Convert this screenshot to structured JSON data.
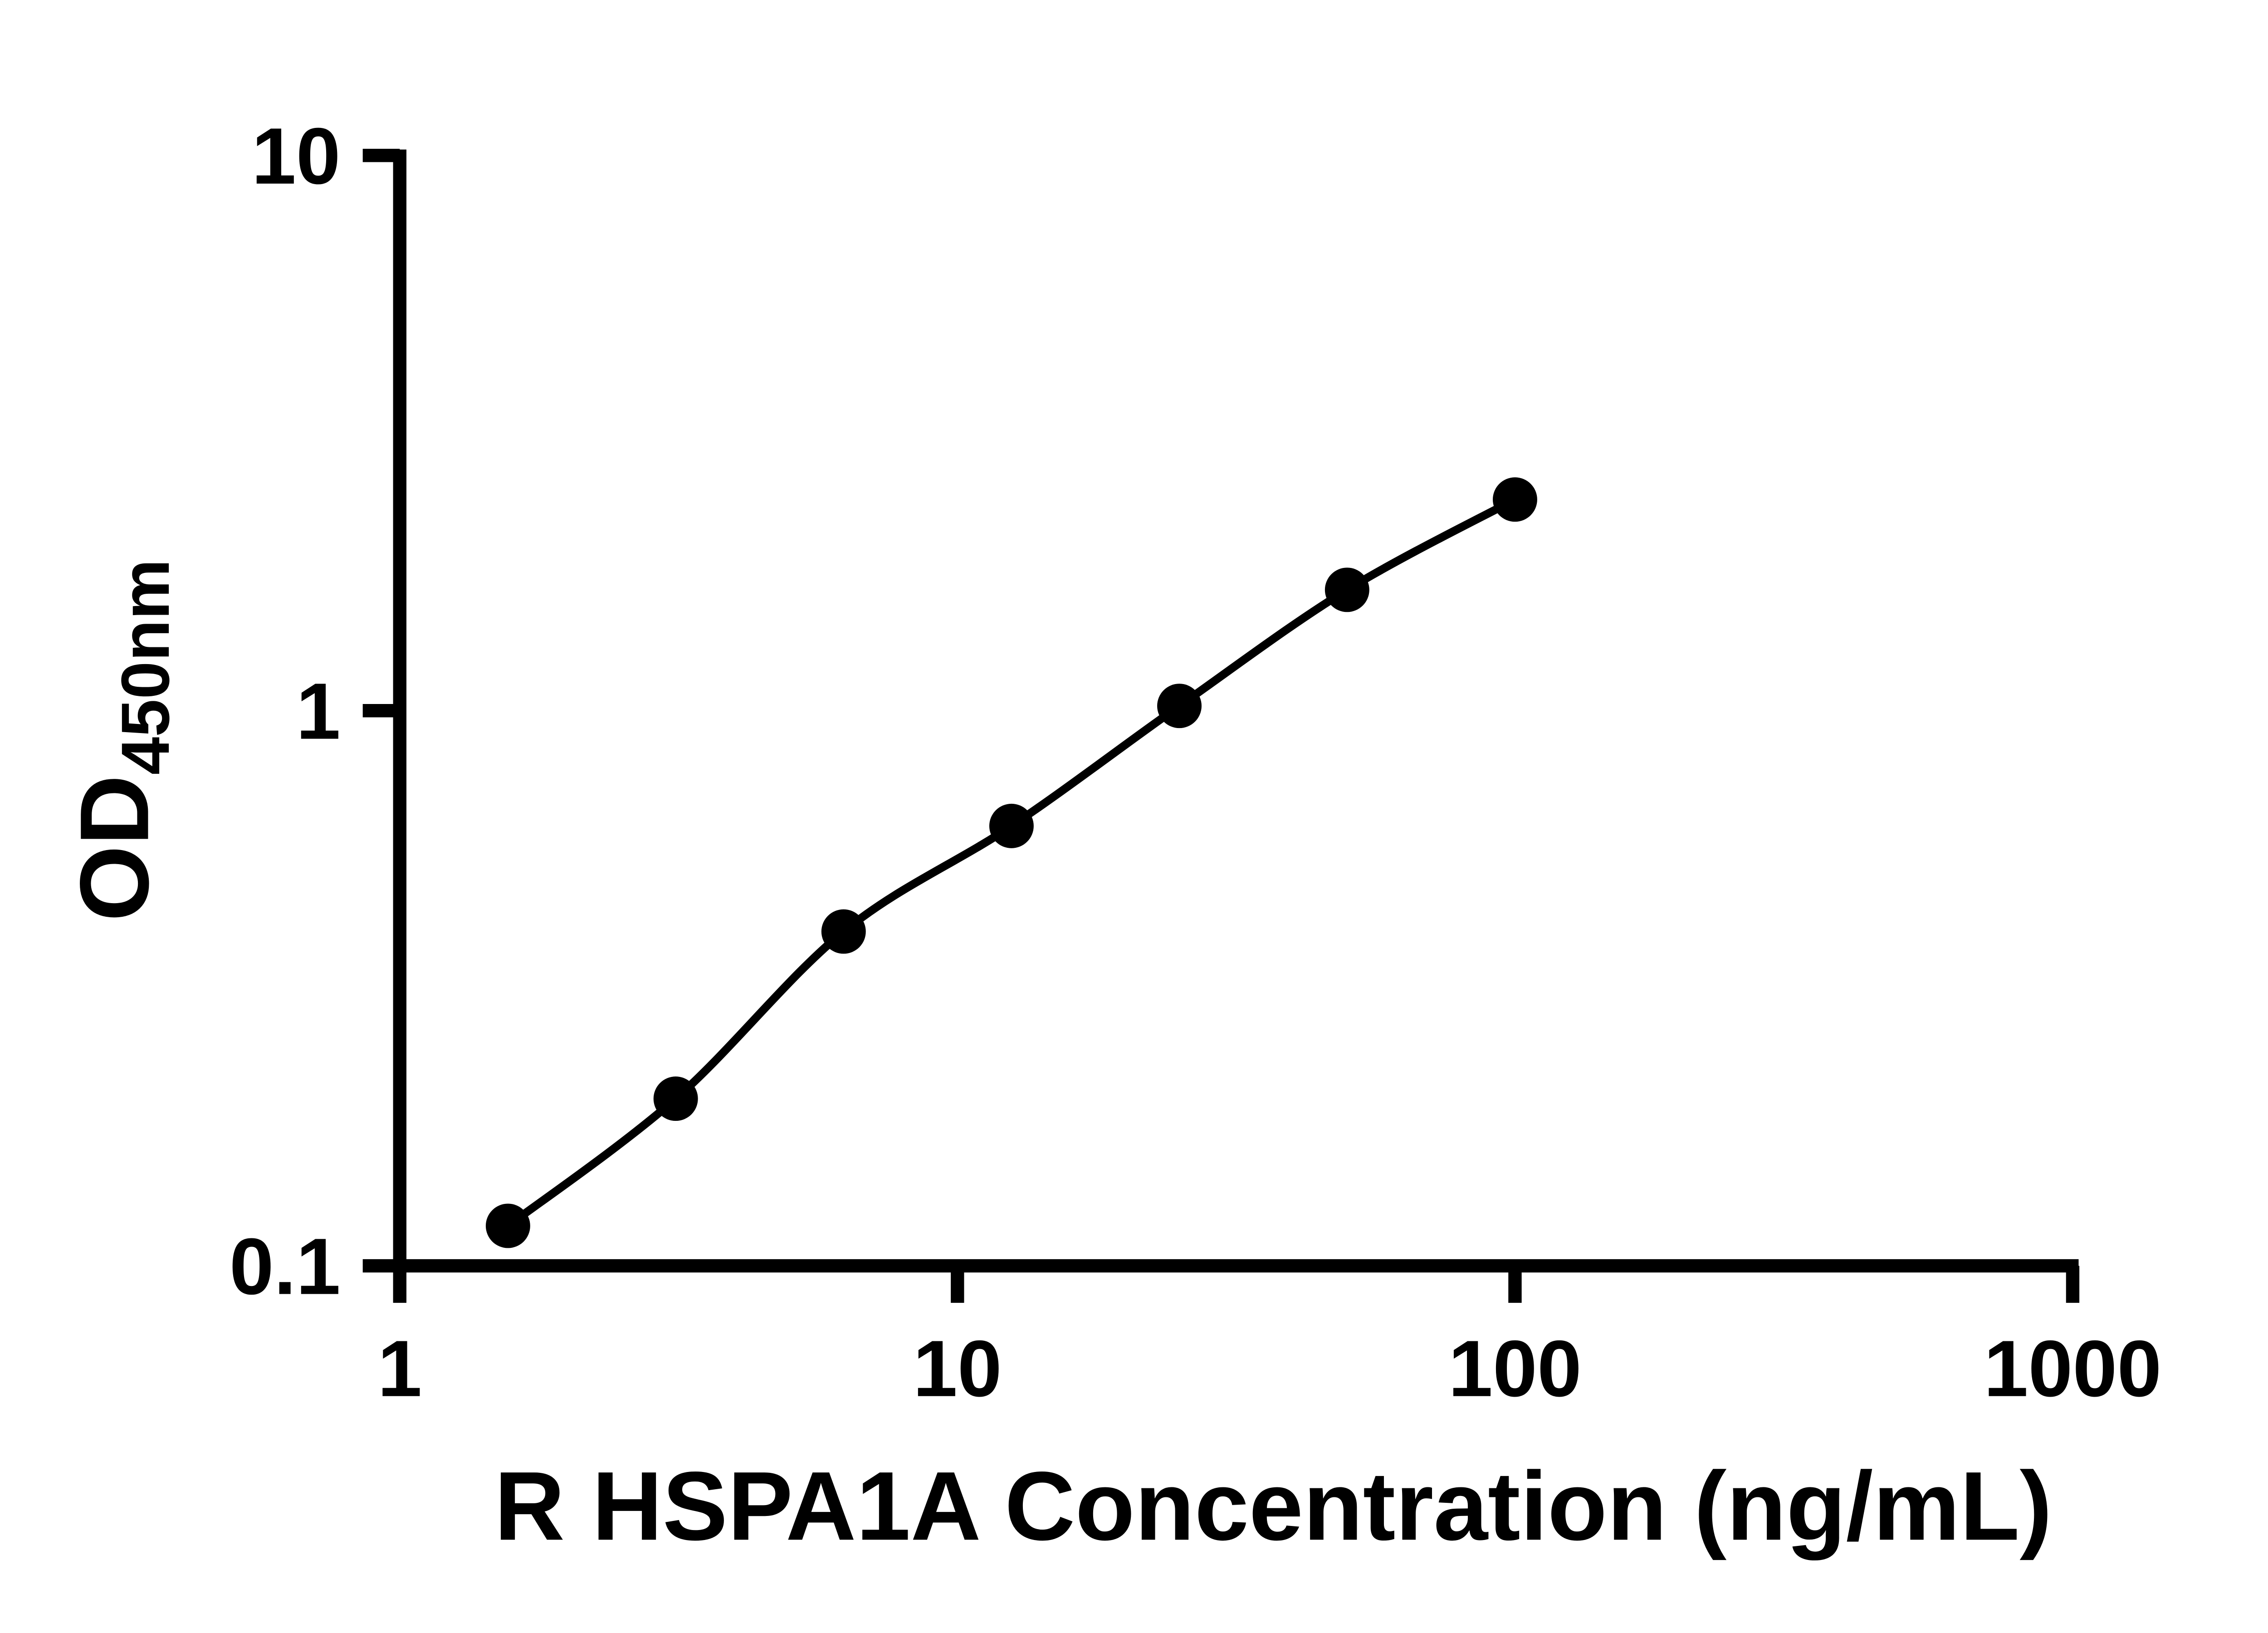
{
  "page": {
    "background": "#ffffff"
  },
  "style": {
    "axis_color": "#000000",
    "line_color": "#000000",
    "marker_color": "#000000"
  },
  "chart_data": {
    "type": "scatter",
    "title": "",
    "xlabel": "R HSPA1A Concentration (ng/mL)",
    "ylabel": {
      "main": "OD",
      "sub": "450nm"
    },
    "x_scale": "log",
    "y_scale": "log",
    "xlim": [
      1,
      1000
    ],
    "ylim": [
      0.1,
      10
    ],
    "x_ticks": [
      1,
      10,
      100,
      1000
    ],
    "x_tick_labels": [
      "1",
      "10",
      "100",
      "1000"
    ],
    "y_ticks": [
      10,
      1,
      0.1
    ],
    "y_tick_labels": [
      "10",
      "1",
      "0.1"
    ],
    "grid": false,
    "legend": "none",
    "series": [
      {
        "marker": "circle",
        "marker_color": "#000000",
        "line": "smooth",
        "line_color": "#000000",
        "points": [
          {
            "x": 1.563,
            "y": 0.118
          },
          {
            "x": 3.125,
            "y": 0.2
          },
          {
            "x": 6.25,
            "y": 0.4
          },
          {
            "x": 12.5,
            "y": 0.62
          },
          {
            "x": 25,
            "y": 1.02
          },
          {
            "x": 50,
            "y": 1.65
          },
          {
            "x": 100,
            "y": 2.4
          }
        ]
      }
    ]
  }
}
